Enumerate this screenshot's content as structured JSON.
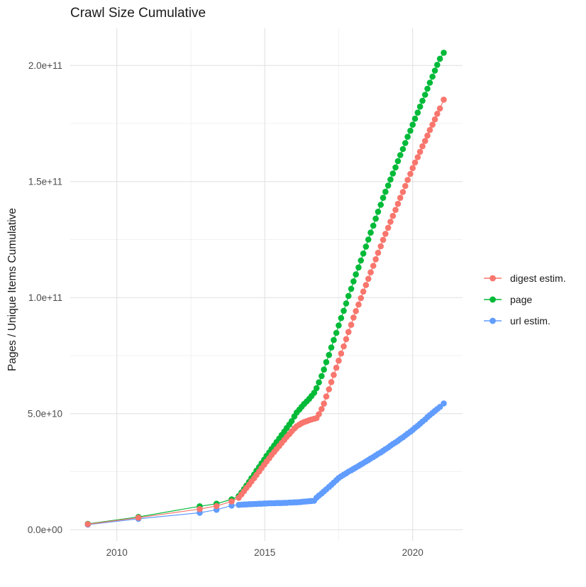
{
  "title": "Crawl Size Cumulative",
  "chart_data": {
    "type": "line",
    "title": "Crawl Size Cumulative",
    "xlabel": "",
    "ylabel": "Pages / Unique Items Cumulative",
    "value_unit": "1e9 (billions of pages / unique items)",
    "xlim": [
      2008.4,
      2021.7
    ],
    "ylim": [
      0,
      216000000000.0
    ],
    "grid": "major and minor, light gray on white",
    "legend_position": "right",
    "x_ticks": [
      {
        "value": 2010,
        "label": "2010"
      },
      {
        "value": 2015,
        "label": "2015"
      },
      {
        "value": 2020,
        "label": "2020"
      }
    ],
    "x_minor_ticks": [
      2012.5,
      2017.5
    ],
    "y_ticks": [
      {
        "value_e9": 0,
        "label": "0.0e+00"
      },
      {
        "value_e9": 50,
        "label": "5.0e+10"
      },
      {
        "value_e9": 100,
        "label": "1.0e+11"
      },
      {
        "value_e9": 150,
        "label": "1.5e+11"
      },
      {
        "value_e9": 200,
        "label": "2.0e+11"
      }
    ],
    "y_minor_ticks_e9": [
      25,
      75,
      125,
      175
    ],
    "marker": "filled circle, radius ~4px, connected by thin line",
    "series": [
      {
        "name": "digest estim.",
        "color": "#F8766D",
        "points_year_value_e9": [
          [
            2009.02,
            2.4
          ],
          [
            2010.73,
            5.2
          ],
          [
            2012.8,
            8.9
          ],
          [
            2013.37,
            10.2
          ],
          [
            2013.88,
            12.2
          ],
          [
            2014.12,
            13.8
          ],
          [
            2014.21,
            15.2
          ],
          [
            2014.3,
            16.6
          ],
          [
            2014.38,
            18.0
          ],
          [
            2014.47,
            19.4
          ],
          [
            2014.55,
            20.8
          ],
          [
            2014.64,
            22.2
          ],
          [
            2014.72,
            23.6
          ],
          [
            2014.81,
            25.1
          ],
          [
            2014.89,
            26.5
          ],
          [
            2014.98,
            28.0
          ],
          [
            2015.06,
            29.4
          ],
          [
            2015.15,
            30.8
          ],
          [
            2015.23,
            32.2
          ],
          [
            2015.32,
            33.5
          ],
          [
            2015.4,
            34.8
          ],
          [
            2015.49,
            36.1
          ],
          [
            2015.57,
            37.4
          ],
          [
            2015.66,
            38.7
          ],
          [
            2015.74,
            40.0
          ],
          [
            2015.83,
            41.2
          ],
          [
            2015.91,
            42.4
          ],
          [
            2016.0,
            43.6
          ],
          [
            2016.08,
            44.6
          ],
          [
            2016.17,
            45.3
          ],
          [
            2016.25,
            45.9
          ],
          [
            2016.33,
            46.4
          ],
          [
            2016.42,
            46.8
          ],
          [
            2016.5,
            47.2
          ],
          [
            2016.58,
            47.5
          ],
          [
            2016.67,
            47.8
          ],
          [
            2016.75,
            48.1
          ],
          [
            2016.83,
            49.8
          ],
          [
            2016.92,
            52.0
          ],
          [
            2017.0,
            54.3
          ],
          [
            2017.08,
            57.4
          ],
          [
            2017.17,
            60.5
          ],
          [
            2017.25,
            63.6
          ],
          [
            2017.33,
            66.7
          ],
          [
            2017.42,
            69.8
          ],
          [
            2017.5,
            72.8
          ],
          [
            2017.58,
            75.9
          ],
          [
            2017.67,
            79.0
          ],
          [
            2017.75,
            82.1
          ],
          [
            2017.83,
            85.2
          ],
          [
            2017.92,
            88.3
          ],
          [
            2018.0,
            91.4
          ],
          [
            2018.08,
            94.2
          ],
          [
            2018.17,
            97.0
          ],
          [
            2018.25,
            99.8
          ],
          [
            2018.33,
            102.6
          ],
          [
            2018.42,
            105.4
          ],
          [
            2018.5,
            108.1
          ],
          [
            2018.58,
            110.9
          ],
          [
            2018.67,
            113.7
          ],
          [
            2018.75,
            116.5
          ],
          [
            2018.83,
            119.3
          ],
          [
            2018.92,
            122.1
          ],
          [
            2019.0,
            124.9
          ],
          [
            2019.08,
            127.5
          ],
          [
            2019.17,
            130.1
          ],
          [
            2019.25,
            132.7
          ],
          [
            2019.33,
            135.2
          ],
          [
            2019.42,
            137.8
          ],
          [
            2019.5,
            140.4
          ],
          [
            2019.58,
            143.0
          ],
          [
            2019.67,
            145.5
          ],
          [
            2019.75,
            148.1
          ],
          [
            2019.83,
            150.7
          ],
          [
            2019.92,
            153.3
          ],
          [
            2020.0,
            155.8
          ],
          [
            2020.08,
            158.2
          ],
          [
            2020.17,
            160.5
          ],
          [
            2020.25,
            162.8
          ],
          [
            2020.33,
            165.2
          ],
          [
            2020.42,
            167.5
          ],
          [
            2020.5,
            169.8
          ],
          [
            2020.58,
            172.2
          ],
          [
            2020.67,
            174.5
          ],
          [
            2020.75,
            176.8
          ],
          [
            2020.83,
            179.2
          ],
          [
            2020.92,
            181.5
          ],
          [
            2021.05,
            185.3
          ]
        ]
      },
      {
        "name": "page",
        "color": "#00BA38",
        "points_year_value_e9": [
          [
            2009.02,
            2.5
          ],
          [
            2010.73,
            5.5
          ],
          [
            2012.8,
            10.1
          ],
          [
            2013.37,
            11.2
          ],
          [
            2013.88,
            13.1
          ],
          [
            2014.12,
            14.5
          ],
          [
            2014.21,
            16.0
          ],
          [
            2014.3,
            17.5
          ],
          [
            2014.38,
            19.0
          ],
          [
            2014.47,
            20.6
          ],
          [
            2014.55,
            22.2
          ],
          [
            2014.64,
            23.8
          ],
          [
            2014.72,
            25.4
          ],
          [
            2014.81,
            27.0
          ],
          [
            2014.89,
            28.6
          ],
          [
            2014.98,
            30.2
          ],
          [
            2015.06,
            31.8
          ],
          [
            2015.15,
            33.3
          ],
          [
            2015.23,
            34.8
          ],
          [
            2015.32,
            36.3
          ],
          [
            2015.4,
            37.8
          ],
          [
            2015.49,
            39.3
          ],
          [
            2015.57,
            40.8
          ],
          [
            2015.66,
            42.3
          ],
          [
            2015.74,
            43.8
          ],
          [
            2015.83,
            45.3
          ],
          [
            2015.91,
            46.8
          ],
          [
            2016.0,
            48.8
          ],
          [
            2016.08,
            50.5
          ],
          [
            2016.17,
            51.8
          ],
          [
            2016.25,
            53.0
          ],
          [
            2016.33,
            54.2
          ],
          [
            2016.42,
            55.3
          ],
          [
            2016.5,
            56.4
          ],
          [
            2016.58,
            57.6
          ],
          [
            2016.67,
            59.0
          ],
          [
            2016.75,
            61.0
          ],
          [
            2016.83,
            63.5
          ],
          [
            2016.92,
            66.2
          ],
          [
            2017.0,
            69.0
          ],
          [
            2017.08,
            72.2
          ],
          [
            2017.17,
            75.3
          ],
          [
            2017.25,
            78.5
          ],
          [
            2017.33,
            81.7
          ],
          [
            2017.42,
            84.8
          ],
          [
            2017.5,
            88.0
          ],
          [
            2017.58,
            91.2
          ],
          [
            2017.67,
            94.3
          ],
          [
            2017.75,
            97.5
          ],
          [
            2017.83,
            100.7
          ],
          [
            2017.92,
            103.8
          ],
          [
            2018.0,
            107.0
          ],
          [
            2018.08,
            110.0
          ],
          [
            2018.17,
            113.0
          ],
          [
            2018.25,
            116.0
          ],
          [
            2018.33,
            119.0
          ],
          [
            2018.42,
            122.0
          ],
          [
            2018.5,
            125.0
          ],
          [
            2018.58,
            128.0
          ],
          [
            2018.67,
            131.0
          ],
          [
            2018.75,
            134.0
          ],
          [
            2018.83,
            137.0
          ],
          [
            2018.92,
            140.0
          ],
          [
            2019.0,
            143.0
          ],
          [
            2019.08,
            145.6
          ],
          [
            2019.17,
            148.3
          ],
          [
            2019.25,
            150.9
          ],
          [
            2019.33,
            153.5
          ],
          [
            2019.42,
            156.1
          ],
          [
            2019.5,
            158.8
          ],
          [
            2019.58,
            161.4
          ],
          [
            2019.67,
            164.0
          ],
          [
            2019.75,
            166.6
          ],
          [
            2019.83,
            169.3
          ],
          [
            2019.92,
            171.9
          ],
          [
            2020.0,
            174.5
          ],
          [
            2020.08,
            177.1
          ],
          [
            2020.17,
            179.7
          ],
          [
            2020.25,
            182.3
          ],
          [
            2020.33,
            184.8
          ],
          [
            2020.42,
            187.4
          ],
          [
            2020.5,
            190.0
          ],
          [
            2020.58,
            192.6
          ],
          [
            2020.67,
            195.2
          ],
          [
            2020.75,
            197.8
          ],
          [
            2020.83,
            200.3
          ],
          [
            2020.92,
            202.9
          ],
          [
            2021.05,
            205.5
          ]
        ]
      },
      {
        "name": "url estim.",
        "color": "#619CFF",
        "points_year_value_e9": [
          [
            2009.02,
            2.2
          ],
          [
            2010.73,
            4.7
          ],
          [
            2012.8,
            7.3
          ],
          [
            2013.37,
            8.6
          ],
          [
            2013.88,
            10.4
          ],
          [
            2014.12,
            10.7
          ],
          [
            2014.21,
            10.8
          ],
          [
            2014.3,
            10.9
          ],
          [
            2014.38,
            10.9
          ],
          [
            2014.47,
            11.0
          ],
          [
            2014.55,
            11.0
          ],
          [
            2014.64,
            11.1
          ],
          [
            2014.72,
            11.1
          ],
          [
            2014.81,
            11.2
          ],
          [
            2014.89,
            11.2
          ],
          [
            2014.98,
            11.3
          ],
          [
            2015.06,
            11.3
          ],
          [
            2015.15,
            11.4
          ],
          [
            2015.23,
            11.4
          ],
          [
            2015.32,
            11.4
          ],
          [
            2015.4,
            11.5
          ],
          [
            2015.49,
            11.5
          ],
          [
            2015.57,
            11.5
          ],
          [
            2015.66,
            11.6
          ],
          [
            2015.74,
            11.6
          ],
          [
            2015.83,
            11.7
          ],
          [
            2015.91,
            11.7
          ],
          [
            2016.0,
            11.8
          ],
          [
            2016.08,
            11.8
          ],
          [
            2016.17,
            11.9
          ],
          [
            2016.25,
            12.0
          ],
          [
            2016.33,
            12.1
          ],
          [
            2016.42,
            12.2
          ],
          [
            2016.5,
            12.3
          ],
          [
            2016.58,
            12.4
          ],
          [
            2016.67,
            12.5
          ],
          [
            2016.75,
            13.8
          ],
          [
            2016.83,
            14.7
          ],
          [
            2016.92,
            15.6
          ],
          [
            2017.0,
            16.5
          ],
          [
            2017.08,
            17.4
          ],
          [
            2017.17,
            18.4
          ],
          [
            2017.25,
            19.3
          ],
          [
            2017.33,
            20.3
          ],
          [
            2017.42,
            21.3
          ],
          [
            2017.5,
            22.3
          ],
          [
            2017.58,
            23.0
          ],
          [
            2017.67,
            23.7
          ],
          [
            2017.75,
            24.3
          ],
          [
            2017.83,
            25.0
          ],
          [
            2017.92,
            25.6
          ],
          [
            2018.0,
            26.2
          ],
          [
            2018.08,
            26.8
          ],
          [
            2018.17,
            27.5
          ],
          [
            2018.25,
            28.1
          ],
          [
            2018.33,
            28.7
          ],
          [
            2018.42,
            29.4
          ],
          [
            2018.5,
            30.0
          ],
          [
            2018.58,
            30.7
          ],
          [
            2018.67,
            31.3
          ],
          [
            2018.75,
            32.0
          ],
          [
            2018.83,
            32.7
          ],
          [
            2018.92,
            33.3
          ],
          [
            2019.0,
            34.0
          ],
          [
            2019.08,
            34.7
          ],
          [
            2019.17,
            35.4
          ],
          [
            2019.25,
            36.2
          ],
          [
            2019.33,
            36.9
          ],
          [
            2019.42,
            37.6
          ],
          [
            2019.5,
            38.3
          ],
          [
            2019.58,
            39.1
          ],
          [
            2019.67,
            39.8
          ],
          [
            2019.75,
            40.6
          ],
          [
            2019.83,
            41.4
          ],
          [
            2019.92,
            42.2
          ],
          [
            2020.0,
            43.0
          ],
          [
            2020.08,
            43.9
          ],
          [
            2020.17,
            44.8
          ],
          [
            2020.25,
            45.7
          ],
          [
            2020.33,
            46.6
          ],
          [
            2020.42,
            47.5
          ],
          [
            2020.5,
            48.5
          ],
          [
            2020.58,
            49.4
          ],
          [
            2020.67,
            50.3
          ],
          [
            2020.75,
            51.2
          ],
          [
            2020.83,
            52.0
          ],
          [
            2020.92,
            52.9
          ],
          [
            2021.05,
            54.4
          ]
        ]
      }
    ]
  },
  "colors": {
    "background": "#ffffff",
    "grid_major": "#e2e2e2",
    "grid_minor": "#f1f1f1",
    "tick_label": "#4d4d4d",
    "text": "#1a1a1a"
  }
}
